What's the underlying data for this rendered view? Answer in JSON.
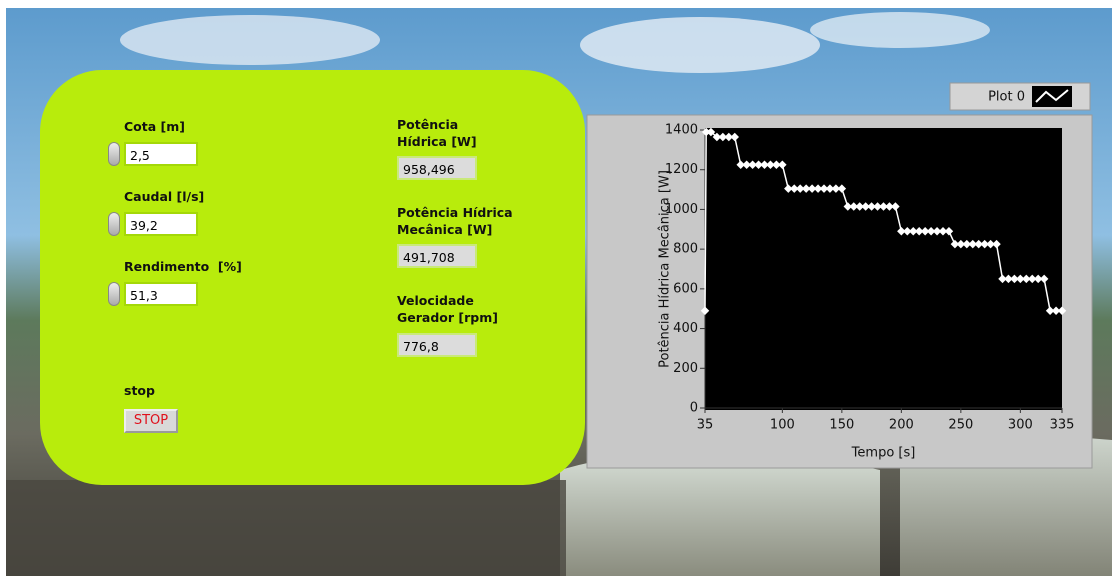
{
  "panel": {
    "controls": [
      {
        "label": "Cota [m]",
        "value": "2,5"
      },
      {
        "label": "Caudal [l/s]",
        "value": "39,2"
      },
      {
        "label": "Rendimento  [%]",
        "value": "51,3"
      }
    ],
    "indicators": [
      {
        "label": "Potência Hídrica [W]",
        "value": "958,496"
      },
      {
        "label": "Potência Hídrica Mecânica [W]",
        "value": "491,708"
      },
      {
        "label": "Velocidade Gerador [rpm]",
        "value": "776,8"
      }
    ],
    "stop_label": "stop",
    "stop_button": "STOP"
  },
  "chart_data": {
    "type": "line",
    "x_label": "Tempo [s]",
    "y_label": "Potência Hídrica Mecânica [W]",
    "x": [
      35,
      36,
      40,
      45,
      50,
      55,
      60,
      65,
      70,
      75,
      80,
      85,
      90,
      95,
      100,
      105,
      110,
      115,
      120,
      125,
      130,
      135,
      140,
      145,
      150,
      155,
      160,
      165,
      170,
      175,
      180,
      185,
      190,
      195,
      200,
      205,
      210,
      215,
      220,
      225,
      230,
      235,
      240,
      245,
      250,
      255,
      260,
      265,
      270,
      275,
      280,
      285,
      290,
      295,
      300,
      305,
      310,
      315,
      320,
      325,
      330,
      335
    ],
    "series": [
      {
        "name": "Plot 0",
        "color": "#ffffff",
        "values": [
          490,
          1390,
          1390,
          1365,
          1365,
          1365,
          1365,
          1225,
          1225,
          1225,
          1225,
          1225,
          1225,
          1225,
          1225,
          1105,
          1105,
          1105,
          1105,
          1105,
          1105,
          1105,
          1105,
          1105,
          1105,
          1015,
          1015,
          1015,
          1015,
          1015,
          1015,
          1015,
          1015,
          1015,
          890,
          890,
          890,
          890,
          890,
          890,
          890,
          890,
          890,
          825,
          825,
          825,
          825,
          825,
          825,
          825,
          825,
          650,
          650,
          650,
          650,
          650,
          650,
          650,
          650,
          490,
          490,
          490
        ]
      }
    ],
    "xlim": [
      35,
      335
    ],
    "ylim": [
      0,
      1400
    ],
    "xticks": [
      35,
      100,
      150,
      200,
      250,
      300,
      335
    ],
    "yticks": [
      0,
      200,
      400,
      600,
      800,
      1000,
      1200,
      1400
    ],
    "background": "#000000"
  }
}
